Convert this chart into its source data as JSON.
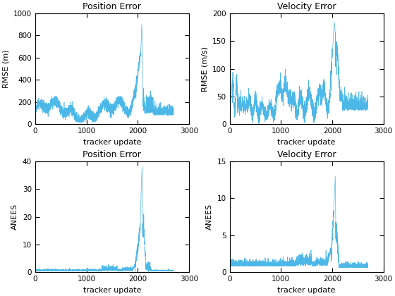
{
  "fig_width": 5.6,
  "fig_height": 4.2,
  "dpi": 100,
  "line_color": "#4db8e8",
  "line_width": 0.5,
  "background_color": "#ffffff",
  "axes": [
    {
      "title": "Position Error",
      "xlabel": "tracker update",
      "ylabel": "RMSE (m)",
      "xlim": [
        0,
        3000
      ],
      "ylim": [
        0,
        1000
      ],
      "yticks": [
        0,
        200,
        400,
        600,
        800,
        1000
      ],
      "xticks": [
        0,
        1000,
        2000,
        3000
      ]
    },
    {
      "title": "Velocity Error",
      "xlabel": "tracker update",
      "ylabel": "RMSE (m/s)",
      "xlim": [
        0,
        3000
      ],
      "ylim": [
        0,
        200
      ],
      "yticks": [
        0,
        50,
        100,
        150,
        200
      ],
      "xticks": [
        0,
        1000,
        2000,
        3000
      ]
    },
    {
      "title": "Position Error",
      "xlabel": "tracker update",
      "ylabel": "ANEES",
      "xlim": [
        0,
        3000
      ],
      "ylim": [
        0,
        40
      ],
      "yticks": [
        0,
        10,
        20,
        30,
        40
      ],
      "xticks": [
        0,
        1000,
        2000,
        3000
      ]
    },
    {
      "title": "Velocity Error",
      "xlabel": "tracker update",
      "ylabel": "ANEES",
      "xlim": [
        0,
        3000
      ],
      "ylim": [
        0,
        15
      ],
      "yticks": [
        0,
        5,
        10,
        15
      ],
      "xticks": [
        0,
        1000,
        2000,
        3000
      ]
    }
  ]
}
